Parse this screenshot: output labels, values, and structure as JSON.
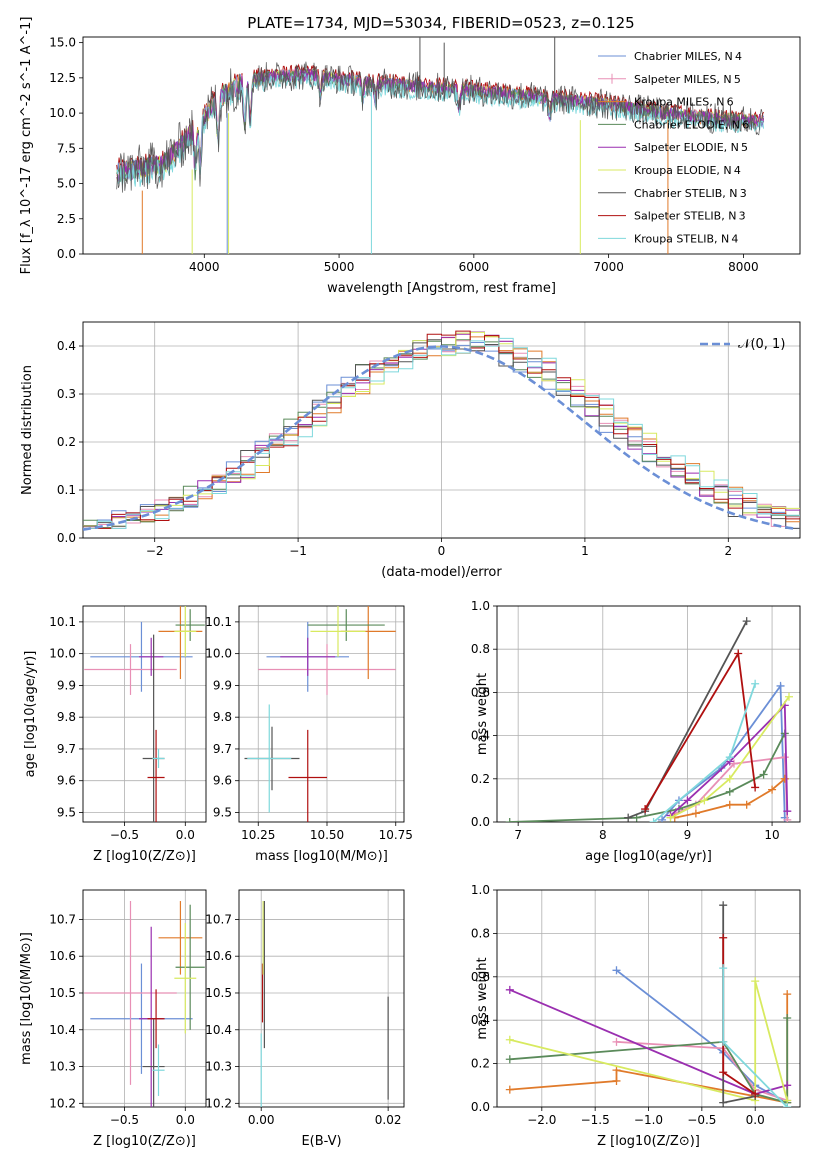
{
  "figure": {
    "title": "PLATE=1734, MJD=53034, FIBERID=0523, z=0.125"
  },
  "colors": {
    "Chabrier MILES": "#6b8fd6",
    "Salpeter MILES": "#e88fb5",
    "Kroupa MILES": "#e07a2a",
    "Chabrier ELODIE": "#5a8a5a",
    "Salpeter ELODIE": "#9a2fb0",
    "Kroupa ELODIE": "#d8ea60",
    "Chabrier STELIB": "#555555",
    "Salpeter STELIB": "#b01010",
    "Kroupa STELIB": "#7fd8dc"
  },
  "chart_data": [
    {
      "id": "spectrum",
      "type": "line",
      "xlabel": "wavelength [Angstrom, rest frame]",
      "ylabel": "Flux [f_λ 10^-17 erg cm^-2 s^-1 A^-1]",
      "xlim": [
        3100,
        8420
      ],
      "ylim": [
        0,
        15.4
      ],
      "xticks": [
        4000,
        5000,
        6000,
        7000,
        8000
      ],
      "yticks": [
        0.0,
        2.5,
        5.0,
        7.5,
        10.0,
        12.5,
        15.0
      ],
      "legend_position": "top-right",
      "grid": false,
      "series": [
        {
          "name": "Chabrier MILES, N_SSP=4",
          "model": "Chabrier MILES"
        },
        {
          "name": "Salpeter MILES, N_SSP=5",
          "model": "Salpeter MILES"
        },
        {
          "name": "Kroupa MILES, N_SSP=6",
          "model": "Kroupa MILES"
        },
        {
          "name": "Chabrier ELODIE, N_SSP=6",
          "model": "Chabrier ELODIE"
        },
        {
          "name": "Salpeter ELODIE, N_SSP=5",
          "model": "Salpeter ELODIE"
        },
        {
          "name": "Kroupa ELODIE, N_SSP=4",
          "model": "Kroupa ELODIE"
        },
        {
          "name": "Chabrier STELIB, N_SSP=3",
          "model": "Chabrier STELIB"
        },
        {
          "name": "Salpeter STELIB, N_SSP=3",
          "model": "Salpeter STELIB"
        },
        {
          "name": "Kroupa STELIB, N_SSP=4",
          "model": "Kroupa STELIB"
        }
      ],
      "continuum": {
        "x": [
          3350,
          3500,
          3700,
          3900,
          4100,
          4300,
          4500,
          4800,
          5000,
          5300,
          5600,
          6000,
          6300,
          6600,
          7000,
          7400,
          7800,
          8150
        ],
        "y": [
          5.8,
          6.0,
          6.4,
          8.5,
          11.0,
          12.3,
          12.6,
          12.7,
          12.4,
          12.1,
          11.9,
          11.6,
          11.3,
          11.0,
          10.6,
          10.0,
          9.6,
          9.4
        ]
      },
      "spikes": [
        {
          "x": 3540,
          "y0": 0,
          "y1": 4.5,
          "model": "Kroupa MILES"
        },
        {
          "x": 3910,
          "y0": 0,
          "y1": 6.0,
          "model": "Kroupa ELODIE"
        },
        {
          "x": 4170,
          "y0": 0,
          "y1": 10.0,
          "model": "Chabrier MILES"
        },
        {
          "x": 4180,
          "y0": 0,
          "y1": 10.0,
          "model": "Kroupa ELODIE"
        },
        {
          "x": 5240,
          "y0": 0,
          "y1": 11.5,
          "model": "Kroupa STELIB"
        },
        {
          "x": 6790,
          "y0": 0,
          "y1": 9.5,
          "model": "Kroupa ELODIE"
        },
        {
          "x": 7440,
          "y0": 0,
          "y1": 9.5,
          "model": "Kroupa MILES"
        },
        {
          "x": 5600,
          "y0": 11,
          "y1": 15.4,
          "model": "Chabrier STELIB"
        },
        {
          "x": 6600,
          "y0": 10,
          "y1": 15.4,
          "model": "Chabrier STELIB"
        },
        {
          "x": 5780,
          "y0": 11,
          "y1": 15.0,
          "model": "Chabrier STELIB"
        }
      ]
    },
    {
      "id": "residuals",
      "type": "line",
      "xlabel": "(data-model)/error",
      "ylabel": "Normed distribution",
      "xlim": [
        -2.5,
        2.5
      ],
      "ylim": [
        0,
        0.45
      ],
      "xticks": [
        -2,
        -1,
        0,
        1,
        2
      ],
      "yticks": [
        0.0,
        0.1,
        0.2,
        0.3,
        0.4
      ],
      "grid": true,
      "legend": [
        {
          "name": "𝒩(0, 1)"
        }
      ],
      "normal": {
        "mu": 0,
        "sigma": 1,
        "color": "#6b8fd6"
      },
      "bin_width": 0.1
    },
    {
      "id": "age_vs_Z",
      "type": "errorbar",
      "xlabel": "Z [log10(Z/Z⊙)]",
      "ylabel": "age  [log10(age/yr)]",
      "xlim": [
        -0.84,
        0.17
      ],
      "ylim": [
        9.47,
        10.15
      ],
      "xticks": [
        -0.5,
        0.0
      ],
      "yticks": [
        9.5,
        9.6,
        9.7,
        9.8,
        9.9,
        10.0,
        10.1
      ],
      "grid": true,
      "points": [
        {
          "model": "Chabrier MILES",
          "x": -0.36,
          "xerr": 0.42,
          "y": 9.99,
          "yerr": 0.11
        },
        {
          "model": "Salpeter MILES",
          "x": -0.45,
          "xerr": 0.38,
          "y": 9.95,
          "yerr": 0.08
        },
        {
          "model": "Kroupa MILES",
          "x": -0.04,
          "xerr": 0.18,
          "y": 10.07,
          "yerr": 0.15
        },
        {
          "model": "Chabrier ELODIE",
          "x": 0.04,
          "xerr": 0.12,
          "y": 10.09,
          "yerr": 0.05
        },
        {
          "model": "Salpeter ELODIE",
          "x": -0.28,
          "xerr": 0.1,
          "y": 9.99,
          "yerr": 0.06
        },
        {
          "model": "Kroupa ELODIE",
          "x": 0.0,
          "xerr": 0.09,
          "y": 10.07,
          "yerr": 0.08
        },
        {
          "model": "Chabrier STELIB",
          "x": -0.26,
          "xerr": 0.09,
          "y": 9.67,
          "yerr": 0.39
        },
        {
          "model": "Salpeter STELIB",
          "x": -0.24,
          "xerr": 0.07,
          "y": 9.61,
          "yerr": 0.15
        },
        {
          "model": "Kroupa STELIB",
          "x": -0.22,
          "xerr": 0.05,
          "y": 9.67,
          "yerr": 0.03
        }
      ]
    },
    {
      "id": "age_vs_mass",
      "type": "errorbar",
      "xlabel": "mass [log10(M/M⊙)]",
      "ylabel": "",
      "xlim": [
        10.18,
        10.78
      ],
      "ylim": [
        9.47,
        10.15
      ],
      "xticks": [
        10.25,
        10.5,
        10.75
      ],
      "yticks": [
        9.5,
        9.6,
        9.7,
        9.8,
        9.9,
        10.0,
        10.1
      ],
      "grid": true,
      "points": [
        {
          "model": "Chabrier MILES",
          "x": 10.43,
          "xerr": 0.15,
          "y": 9.99,
          "yerr": 0.11
        },
        {
          "model": "Salpeter MILES",
          "x": 10.5,
          "xerr": 0.25,
          "y": 9.95,
          "yerr": 0.08
        },
        {
          "model": "Kroupa MILES",
          "x": 10.65,
          "xerr": 0.1,
          "y": 10.07,
          "yerr": 0.15
        },
        {
          "model": "Chabrier ELODIE",
          "x": 10.57,
          "xerr": 0.14,
          "y": 10.09,
          "yerr": 0.05
        },
        {
          "model": "Salpeter ELODIE",
          "x": 10.43,
          "xerr": 0.1,
          "y": 9.99,
          "yerr": 0.06
        },
        {
          "model": "Kroupa ELODIE",
          "x": 10.54,
          "xerr": 0.1,
          "y": 10.07,
          "yerr": 0.08
        },
        {
          "model": "Chabrier STELIB",
          "x": 10.3,
          "xerr": 0.1,
          "y": 9.67,
          "yerr": 0.1
        },
        {
          "model": "Salpeter STELIB",
          "x": 10.43,
          "xerr": 0.07,
          "y": 9.61,
          "yerr": 0.15
        },
        {
          "model": "Kroupa STELIB",
          "x": 10.29,
          "xerr": 0.08,
          "y": 9.67,
          "yerr": 0.17
        }
      ]
    },
    {
      "id": "weight_vs_age",
      "type": "line",
      "xlabel": "age  [log10(age/yr)]",
      "ylabel": "mass weight",
      "xlim": [
        6.75,
        10.33
      ],
      "ylim": [
        0.0,
        1.0
      ],
      "xticks": [
        7,
        8,
        9,
        10
      ],
      "yticks": [
        0.0,
        0.2,
        0.4,
        0.6,
        0.8,
        1.0
      ],
      "grid": true,
      "series": [
        {
          "model": "Chabrier MILES",
          "x": [
            8.7,
            8.9,
            9.4,
            10.1,
            10.15
          ],
          "y": [
            0.01,
            0.1,
            0.25,
            0.63,
            0.02
          ]
        },
        {
          "model": "Salpeter MILES",
          "x": [
            8.8,
            9.1,
            9.55,
            10.15,
            10.18
          ],
          "y": [
            0.03,
            0.08,
            0.27,
            0.3,
            0.01
          ]
        },
        {
          "model": "Kroupa MILES",
          "x": [
            8.85,
            9.1,
            9.5,
            9.7,
            10.0,
            10.15
          ],
          "y": [
            0.02,
            0.04,
            0.08,
            0.08,
            0.15,
            0.2
          ]
        },
        {
          "model": "Chabrier ELODIE",
          "x": [
            6.9,
            8.4,
            8.9,
            9.5,
            9.9,
            10.15
          ],
          "y": [
            0.0,
            0.02,
            0.06,
            0.14,
            0.22,
            0.41
          ]
        },
        {
          "model": "Salpeter ELODIE",
          "x": [
            8.8,
            9.0,
            9.5,
            10.15,
            10.18
          ],
          "y": [
            0.03,
            0.1,
            0.28,
            0.54,
            0.05
          ]
        },
        {
          "model": "Kroupa ELODIE",
          "x": [
            8.8,
            9.2,
            9.5,
            10.2
          ],
          "y": [
            0.02,
            0.1,
            0.2,
            0.58
          ]
        },
        {
          "model": "Chabrier STELIB",
          "x": [
            8.3,
            8.5,
            9.7
          ],
          "y": [
            0.02,
            0.05,
            0.93
          ]
        },
        {
          "model": "Salpeter STELIB",
          "x": [
            8.5,
            9.6,
            9.8
          ],
          "y": [
            0.06,
            0.78,
            0.16
          ]
        },
        {
          "model": "Kroupa STELIB",
          "x": [
            8.6,
            9.5,
            9.8
          ],
          "y": [
            0.0,
            0.3,
            0.64
          ]
        }
      ]
    },
    {
      "id": "mass_vs_Z",
      "type": "errorbar",
      "xlabel": "Z [log10(Z/Z⊙)]",
      "ylabel": "mass [log10(M/M⊙)]",
      "xlim": [
        -0.84,
        0.17
      ],
      "ylim": [
        10.19,
        10.78
      ],
      "xticks": [
        -0.5,
        0.0
      ],
      "yticks": [
        10.2,
        10.3,
        10.4,
        10.5,
        10.6,
        10.7
      ],
      "grid": true,
      "points": [
        {
          "model": "Chabrier MILES",
          "x": -0.36,
          "xerr": 0.42,
          "y": 10.43,
          "yerr": 0.15
        },
        {
          "model": "Salpeter MILES",
          "x": -0.45,
          "xerr": 0.38,
          "y": 10.5,
          "yerr": 0.25
        },
        {
          "model": "Kroupa MILES",
          "x": -0.04,
          "xerr": 0.18,
          "y": 10.65,
          "yerr": 0.1
        },
        {
          "model": "Chabrier ELODIE",
          "x": 0.04,
          "xerr": 0.12,
          "y": 10.57,
          "yerr": 0.17
        },
        {
          "model": "Salpeter ELODIE",
          "x": -0.28,
          "xerr": 0.1,
          "y": 10.43,
          "yerr": 0.25
        },
        {
          "model": "Kroupa ELODIE",
          "x": 0.0,
          "xerr": 0.09,
          "y": 10.54,
          "yerr": 0.15
        },
        {
          "model": "Chabrier STELIB",
          "x": -0.26,
          "xerr": 0.09,
          "y": 10.3,
          "yerr": 0.13
        },
        {
          "model": "Salpeter STELIB",
          "x": -0.24,
          "xerr": 0.07,
          "y": 10.43,
          "yerr": 0.08
        },
        {
          "model": "Kroupa STELIB",
          "x": -0.22,
          "xerr": 0.05,
          "y": 10.29,
          "yerr": 0.07
        }
      ]
    },
    {
      "id": "mass_vs_ebv",
      "type": "errorbar",
      "xlabel": "E(B-V)",
      "ylabel": "",
      "xlim": [
        -0.0035,
        0.0225
      ],
      "ylim": [
        10.19,
        10.78
      ],
      "xticks": [
        0.0,
        0.02
      ],
      "yticks": [
        10.2,
        10.3,
        10.4,
        10.5,
        10.6,
        10.7
      ],
      "grid": true,
      "points": [
        {
          "model": "Kroupa STELIB",
          "x": 0.0,
          "xerr": 0,
          "y": 10.29,
          "yerr": 0.1
        },
        {
          "model": "Salpeter STELIB",
          "x": 0.0002,
          "xerr": 0,
          "y": 10.5,
          "yerr": 0.08
        },
        {
          "model": "Kroupa ELODIE",
          "x": 0.0003,
          "xerr": 0,
          "y": 10.65,
          "yerr": 0.1
        },
        {
          "model": "Chabrier STELIB",
          "x": 0.0005,
          "xerr": 0,
          "y": 10.55,
          "yerr": 0.2
        },
        {
          "model": "Chabrier STELIB",
          "x": 0.02,
          "xerr": 0,
          "y": 10.35,
          "yerr": 0.14
        }
      ]
    },
    {
      "id": "weight_vs_Z",
      "type": "line",
      "xlabel": "Z [log10(Z/Z⊙)]",
      "ylabel": "mass weight",
      "xlim": [
        -2.42,
        0.42
      ],
      "ylim": [
        0.0,
        1.0
      ],
      "xticks": [
        -2.0,
        -1.5,
        -1.0,
        -0.5,
        0.0
      ],
      "yticks": [
        0.0,
        0.2,
        0.4,
        0.6,
        0.8,
        1.0
      ],
      "grid": true,
      "series": [
        {
          "model": "Chabrier MILES",
          "x": [
            -1.3,
            -0.3,
            0.0,
            0.3
          ],
          "y": [
            0.63,
            0.25,
            0.1,
            0.02
          ]
        },
        {
          "model": "Salpeter MILES",
          "x": [
            -1.3,
            -0.3,
            0.0,
            0.3
          ],
          "y": [
            0.3,
            0.27,
            0.08,
            0.03
          ]
        },
        {
          "model": "Kroupa MILES",
          "x": [
            -2.3,
            -1.3,
            -1.3,
            0.0,
            0.3,
            0.3
          ],
          "y": [
            0.08,
            0.12,
            0.17,
            0.05,
            0.02,
            0.52
          ]
        },
        {
          "model": "Chabrier ELODIE",
          "x": [
            -2.3,
            -0.3,
            0.0,
            0.3,
            0.3
          ],
          "y": [
            0.22,
            0.3,
            0.06,
            0.02,
            0.41
          ]
        },
        {
          "model": "Salpeter ELODIE",
          "x": [
            -2.3,
            0.0,
            0.3
          ],
          "y": [
            0.54,
            0.06,
            0.1
          ]
        },
        {
          "model": "Kroupa ELODIE",
          "x": [
            -2.3,
            0.0,
            0.0,
            0.3
          ],
          "y": [
            0.31,
            0.03,
            0.58,
            0.03
          ]
        },
        {
          "model": "Chabrier STELIB",
          "x": [
            -0.3,
            -0.3,
            0.0
          ],
          "y": [
            0.93,
            0.02,
            0.05
          ]
        },
        {
          "model": "Salpeter STELIB",
          "x": [
            -0.3,
            -0.3,
            0.0
          ],
          "y": [
            0.78,
            0.16,
            0.06
          ]
        },
        {
          "model": "Kroupa STELIB",
          "x": [
            -0.3,
            -0.3,
            0.3
          ],
          "y": [
            0.64,
            0.3,
            0.0
          ]
        }
      ]
    }
  ]
}
